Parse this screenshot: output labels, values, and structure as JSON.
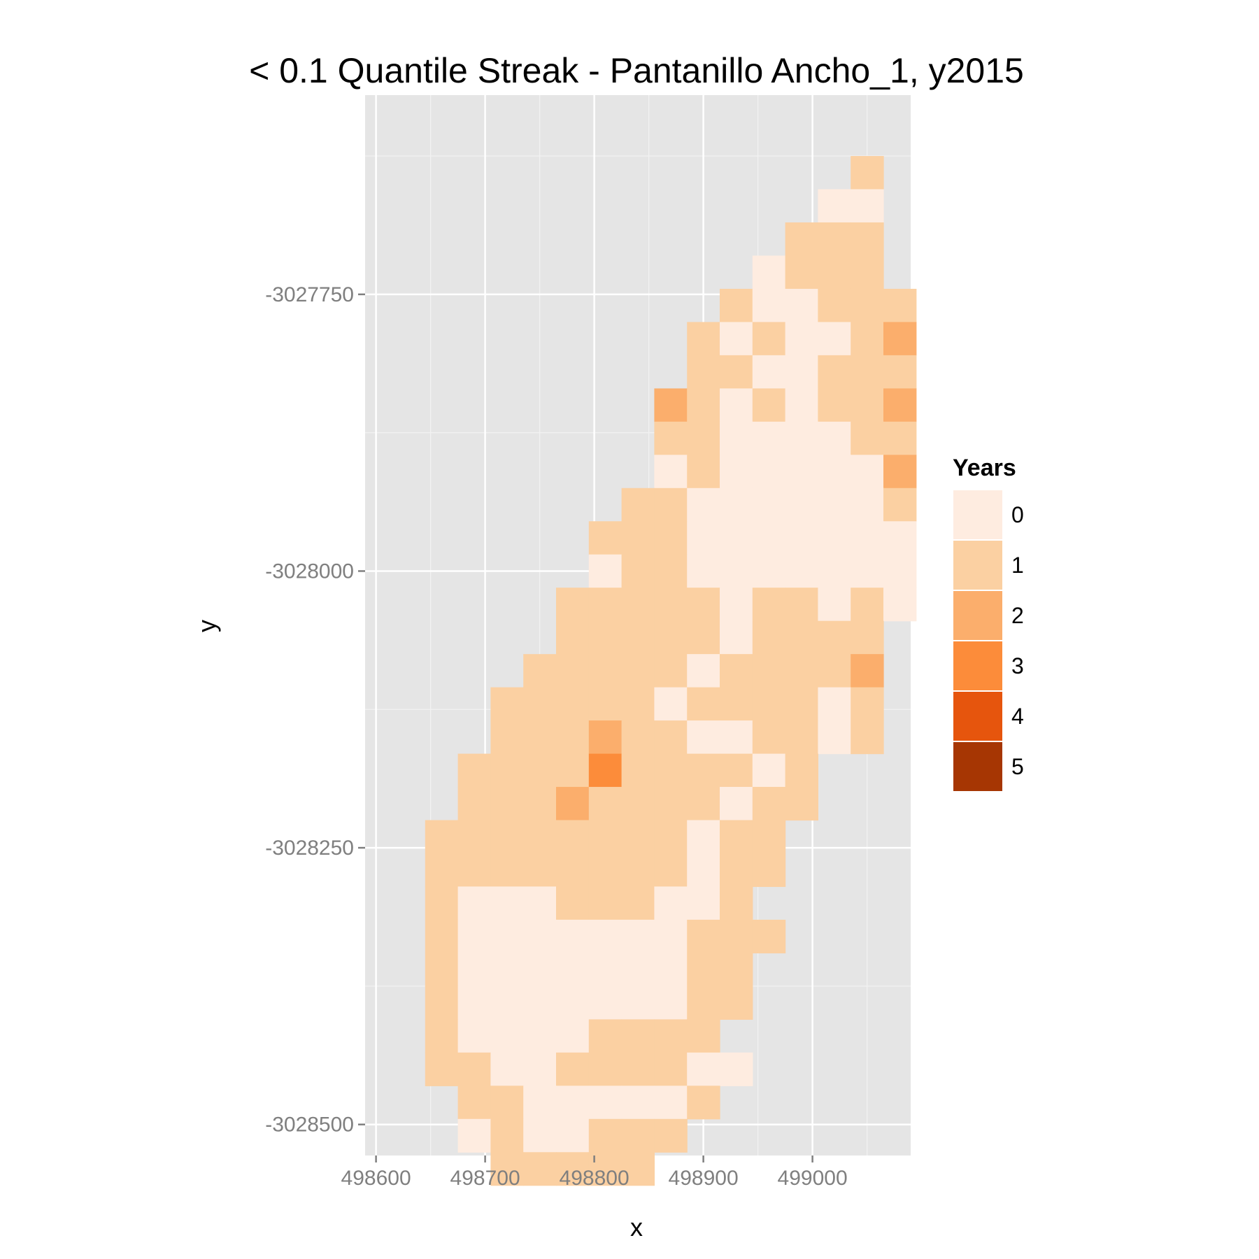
{
  "chart_data": {
    "type": "heatmap",
    "title": "< 0.1 Quantile Streak - Pantanillo Ancho_1, y2015",
    "xlabel": "x",
    "ylabel": "y",
    "xlim": [
      498590,
      499090
    ],
    "ylim": [
      -3028528,
      -3027570
    ],
    "xticks": [
      498600,
      498700,
      498800,
      498900,
      499000
    ],
    "yticks": [
      -3027750,
      -3028000,
      -3028250,
      -3028500
    ],
    "grid": true,
    "legend": {
      "title": "Years",
      "position": "right",
      "levels": [
        "0",
        "1",
        "2",
        "3",
        "4",
        "5"
      ],
      "colors": [
        "#feece0",
        "#fbd0a2",
        "#fbae6c",
        "#fc8c3a",
        "#e6550d",
        "#a63603"
      ]
    },
    "cell_width": 30,
    "cell_height": 30,
    "x_origin": 498630,
    "y_origin": -3027640,
    "grid_rows": [
      "..............1.",
      ".............00.",
      "............111.",
      "...........0111.",
      "..........100111",
      ".........1010012",
      ".........1100111",
      "........21010112",
      "........11000011",
      "........01000002",
      ".......110000001",
      "......1110000000",
      "......0110000000",
      ".....11111011010",
      ".....1111101111.",
      "....11111011112.",
      "...111110111101.",
      "...111211001101.",
      "..11113111101...",
      "..11121111011...",
      ".11111111011....",
      ".11111111011....",
      ".1000111001.....",
      ".10000000111....",
      ".1000000011.....",
      ".1000000011.....",
      ".100001111......",
      ".1100111100.....",
      "..11000001......",
      "..0100111.......",
      "...11111........"
    ]
  }
}
